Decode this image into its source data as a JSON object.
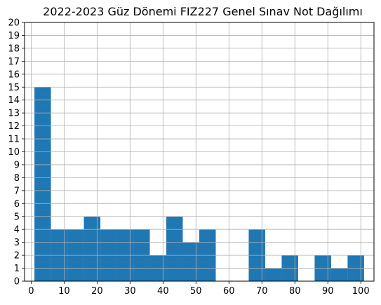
{
  "chart_data": {
    "type": "bar",
    "subtype": "histogram",
    "title": "2022-2023 Güz Dönemi FIZ227 Genel Sınav Not Dağılımı",
    "xlabel": "",
    "ylabel": "",
    "xlim": [
      -2,
      104
    ],
    "ylim": [
      0,
      20
    ],
    "x_ticks": [
      0,
      10,
      20,
      30,
      40,
      50,
      60,
      70,
      80,
      90,
      100
    ],
    "y_ticks": [
      0,
      1,
      2,
      3,
      4,
      5,
      6,
      7,
      8,
      9,
      10,
      11,
      12,
      13,
      14,
      15,
      16,
      17,
      18,
      19,
      20
    ],
    "grid": true,
    "bar_color": "#1f77b4",
    "bins": [
      {
        "start": 1,
        "end": 6,
        "count": 15
      },
      {
        "start": 6,
        "end": 11,
        "count": 4
      },
      {
        "start": 11,
        "end": 16,
        "count": 4
      },
      {
        "start": 16,
        "end": 21,
        "count": 5
      },
      {
        "start": 21,
        "end": 26,
        "count": 4
      },
      {
        "start": 26,
        "end": 31,
        "count": 4
      },
      {
        "start": 31,
        "end": 36,
        "count": 4
      },
      {
        "start": 36,
        "end": 41,
        "count": 2
      },
      {
        "start": 41,
        "end": 46,
        "count": 5
      },
      {
        "start": 46,
        "end": 51,
        "count": 3
      },
      {
        "start": 51,
        "end": 56,
        "count": 4
      },
      {
        "start": 56,
        "end": 61,
        "count": 0
      },
      {
        "start": 61,
        "end": 66,
        "count": 0
      },
      {
        "start": 66,
        "end": 71,
        "count": 4
      },
      {
        "start": 71,
        "end": 76,
        "count": 1
      },
      {
        "start": 76,
        "end": 81,
        "count": 2
      },
      {
        "start": 81,
        "end": 86,
        "count": 0
      },
      {
        "start": 86,
        "end": 91,
        "count": 2
      },
      {
        "start": 91,
        "end": 96,
        "count": 1
      },
      {
        "start": 96,
        "end": 101,
        "count": 2
      }
    ]
  }
}
